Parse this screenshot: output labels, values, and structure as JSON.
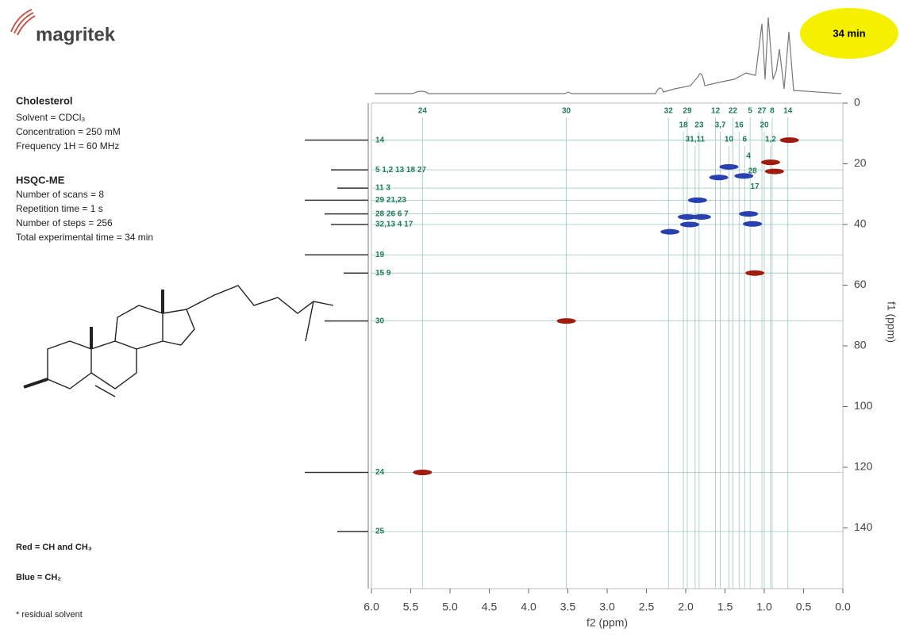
{
  "brand": "magritek",
  "badge": "34 min",
  "sample": {
    "title": "Cholesterol",
    "lines": [
      "Solvent = CDCl₃",
      "Concentration = 250 mM",
      "Frequency 1H = 60 MHz"
    ]
  },
  "experiment": {
    "title": "HSQC-ME",
    "lines": [
      "Number of scans = 8",
      "Repetition time = 1 s",
      "Number of steps = 256",
      "Total experimental time =  34 min"
    ]
  },
  "footnote": "* residual solvent",
  "chart_data": {
    "type": "hsqc",
    "x_label": "f2 (ppm)",
    "y_label": "f1 (ppm)",
    "xlim": [
      6.0,
      0.0
    ],
    "ylim": [
      0,
      160
    ],
    "xticks": [
      {
        "value": 6,
        "label": "6.0"
      },
      {
        "value": 5.5,
        "label": "5.5"
      },
      {
        "value": 5,
        "label": "5.0"
      },
      {
        "value": 4.5,
        "label": "4.5"
      },
      {
        "value": 4,
        "label": "4.0"
      },
      {
        "value": 3.5,
        "label": "3.5"
      },
      {
        "value": 3,
        "label": "3.0"
      },
      {
        "value": 2.5,
        "label": "2.5"
      },
      {
        "value": 2,
        "label": "2.0"
      },
      {
        "value": 1.5,
        "label": "1.5"
      },
      {
        "value": 1,
        "label": "1.0"
      },
      {
        "value": 0.5,
        "label": "0.5"
      },
      {
        "value": 0,
        "label": "0.0"
      }
    ],
    "yticks": [
      0,
      20,
      40,
      60,
      80,
      100,
      120,
      140
    ],
    "series": [
      {
        "name": "Red = CH and CH₃",
        "color": "#a01c10",
        "x": [
          0.68,
          0.92,
          0.87,
          1.12,
          3.52,
          5.35
        ],
        "values": [
          12.2,
          19.5,
          22.5,
          56,
          71.8,
          121.7
        ]
      },
      {
        "name": "Blue = CH₂",
        "color": "#2840b0",
        "x": [
          1.45,
          1.58,
          1.26,
          1.85,
          1.2,
          1.95,
          1.15,
          2.2,
          1.98,
          1.8
        ],
        "values": [
          21,
          24.5,
          24,
          32,
          36.5,
          40,
          39.8,
          42.4,
          37.5,
          37.5
        ]
      }
    ],
    "h_labels": [
      [
        {
          "label": "24",
          "x": 5.35
        },
        {
          "label": "30",
          "x": 3.52
        },
        {
          "label": "32",
          "x": 2.22
        },
        {
          "label": "29",
          "x": 1.98
        },
        {
          "label": "12",
          "x": 1.62
        },
        {
          "label": "22",
          "x": 1.4
        },
        {
          "label": "5",
          "x": 1.18
        },
        {
          "label": "27",
          "x": 1.03
        },
        {
          "label": "8",
          "x": 0.9
        },
        {
          "label": "14",
          "x": 0.7
        }
      ],
      [
        {
          "label": "18",
          "x": 2.03
        },
        {
          "label": "23",
          "x": 1.83
        },
        {
          "label": "3,7",
          "x": 1.56
        },
        {
          "label": "16",
          "x": 1.32
        },
        {
          "label": "20",
          "x": 1.0
        }
      ],
      [
        {
          "label": "31,11",
          "x": 1.88
        },
        {
          "label": "10",
          "x": 1.45
        },
        {
          "label": "6",
          "x": 1.25
        },
        {
          "label": "1,2",
          "x": 0.92
        }
      ]
    ],
    "extra_labels": [
      {
        "label": "4",
        "x": 1.2,
        "y": 17.5
      },
      {
        "label": "28",
        "x": 1.15,
        "y": 22.5
      },
      {
        "label": "17",
        "x": 1.12,
        "y": 27.5
      }
    ],
    "c_labels": [
      {
        "label": "14",
        "y": 12.2
      },
      {
        "label": "5 1,2  13  18 27",
        "y": 22
      },
      {
        "label": "11 3",
        "y": 28
      },
      {
        "label": "29  21,23",
        "y": 32
      },
      {
        "label": "28 26  6 7",
        "y": 36.5
      },
      {
        "label": "32,13 4 17",
        "y": 40
      },
      {
        "label": "19",
        "y": 50
      },
      {
        "label": "15 9",
        "y": 56
      },
      {
        "label": "30",
        "y": 71.8
      },
      {
        "label": "24",
        "y": 121.7
      },
      {
        "label": "25",
        "y": 141.2
      }
    ]
  }
}
